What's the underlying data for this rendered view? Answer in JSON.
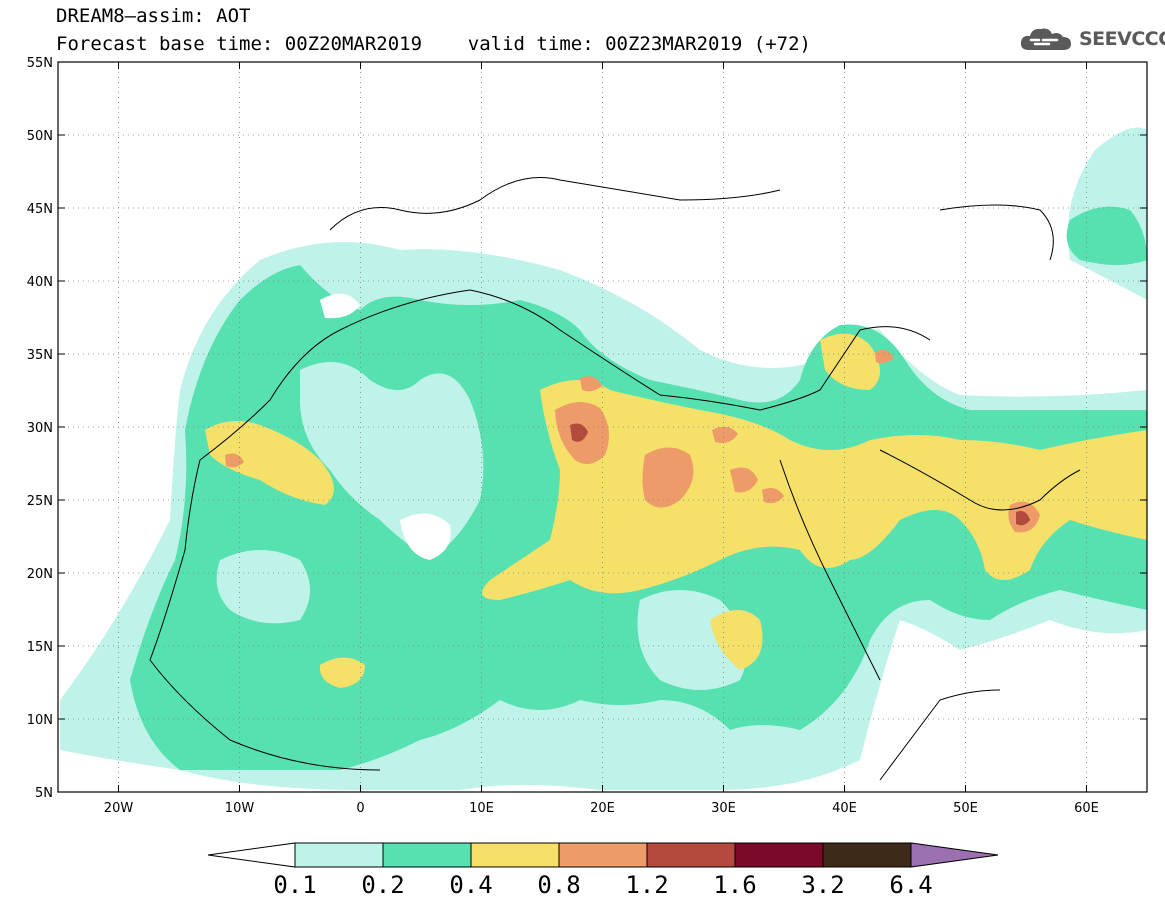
{
  "header": {
    "title_line1": "DREAM8–assim: AOT",
    "title_line2": "Forecast base time: 00Z20MAR2019    valid time: 00Z23MAR2019 (+72)",
    "logo_text": "SEEVCCC",
    "logo_icon": "cloud-icon"
  },
  "axes": {
    "lat_labels": [
      "55N",
      "50N",
      "45N",
      "40N",
      "35N",
      "30N",
      "25N",
      "20N",
      "15N",
      "10N",
      "5N"
    ],
    "lon_labels": [
      "20W",
      "10W",
      "0",
      "10E",
      "20E",
      "30E",
      "40E",
      "50E",
      "60E"
    ],
    "lat_range": [
      5,
      55
    ],
    "lon_range": [
      -25,
      65
    ],
    "grid": "dotted"
  },
  "colorbar": {
    "levels": [
      "0.1",
      "0.2",
      "0.4",
      "0.8",
      "1.2",
      "1.6",
      "3.2",
      "6.4"
    ],
    "under_color": "#ffffff",
    "colors": [
      "#bff3ea",
      "#57e0b0",
      "#f5e06a",
      "#ed9b68",
      "#b24a3e",
      "#7a0a2a",
      "#3e2a18"
    ],
    "over_color": "#9c6fb0"
  }
}
